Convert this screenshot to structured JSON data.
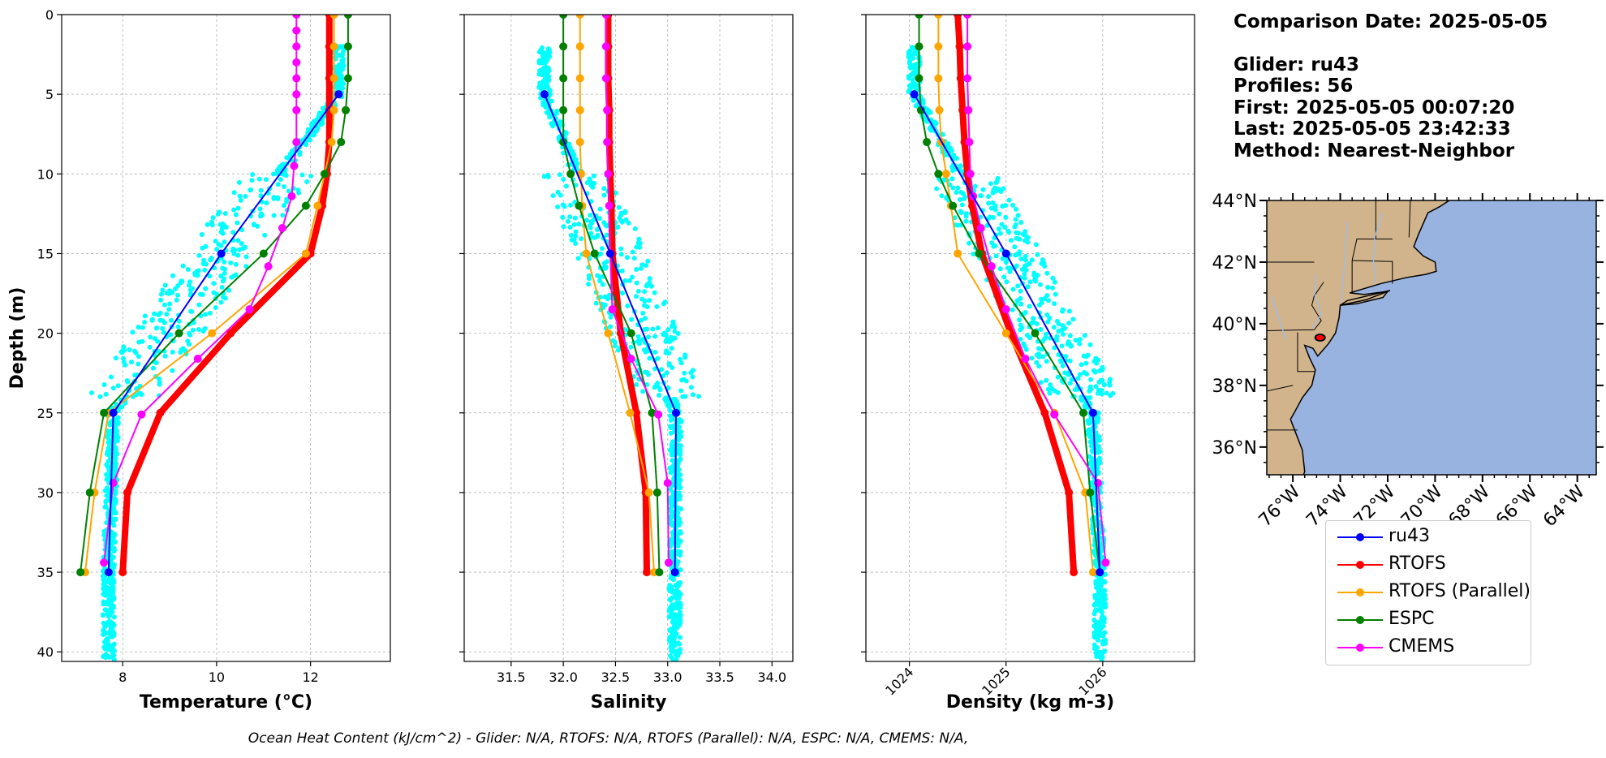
{
  "figure": {
    "info_lines": [
      "Comparison Date: 2025-05-05",
      "",
      "Glider: ru43",
      "Profiles: 56",
      "First: 2025-05-05 00:07:20",
      "Last: 2025-05-05 23:42:33",
      "Method: Nearest-Neighbor"
    ],
    "footnote": "Ocean Heat Content (kJ/cm^2) - Glider: N/A,  RTOFS: N/A,  RTOFS (Parallel): N/A,  ESPC: N/A,  CMEMS: N/A,"
  },
  "legend": {
    "location": "below-map",
    "items": [
      {
        "label": "ru43",
        "color": "#0000ff",
        "lw": 2
      },
      {
        "label": "RTOFS",
        "color": "#ff0000",
        "lw": 2
      },
      {
        "label": "RTOFS (Parallel)",
        "color": "#ffa500",
        "lw": 2
      },
      {
        "label": "ESPC",
        "color": "#008000",
        "lw": 2
      },
      {
        "label": "CMEMS",
        "color": "#ff00ff",
        "lw": 2
      }
    ]
  },
  "colors": {
    "glider_scatter": "#00ffff",
    "land": "#d2b48c",
    "ocean": "#99b3e0",
    "rivers": "#9fbde6",
    "grid": "#b0b0b0"
  },
  "chart_data": [
    {
      "type": "line",
      "id": "temperature",
      "xlabel": "Temperature (°C)",
      "ylabel": "Depth (m)",
      "xlim": [
        6.7,
        13.7
      ],
      "ylim": [
        40.6,
        0
      ],
      "xticks": [
        8,
        10,
        12
      ],
      "yticks": [
        0,
        5,
        10,
        15,
        20,
        25,
        30,
        35,
        40
      ],
      "grid": true,
      "scatter_note": "cyan dots: individual glider observations",
      "series": [
        {
          "name": "ru43",
          "color": "#0000ff",
          "lw": 2,
          "ms": 10,
          "depth": [
            5,
            15,
            25,
            35
          ],
          "values": [
            12.6,
            10.1,
            7.8,
            7.7
          ]
        },
        {
          "name": "RTOFS",
          "color": "#ff0000",
          "lw": 8,
          "ms": 10,
          "depth": [
            0,
            2,
            4,
            6,
            8,
            10,
            12,
            15,
            20,
            25,
            30,
            35
          ],
          "values": [
            12.4,
            12.4,
            12.4,
            12.4,
            12.4,
            12.35,
            12.25,
            12.0,
            10.3,
            8.8,
            8.1,
            8.0
          ]
        },
        {
          "name": "RTOFS (Parallel)",
          "color": "#ffa500",
          "lw": 2,
          "ms": 10,
          "depth": [
            0,
            2,
            4,
            6,
            8,
            10,
            12,
            15,
            20,
            25,
            30,
            35
          ],
          "values": [
            12.5,
            12.5,
            12.5,
            12.5,
            12.45,
            12.3,
            12.15,
            11.9,
            9.9,
            7.7,
            7.4,
            7.2
          ]
        },
        {
          "name": "ESPC",
          "color": "#008000",
          "lw": 2,
          "ms": 10,
          "depth": [
            0,
            2,
            4,
            6,
            8,
            10,
            12,
            15,
            20,
            25,
            30,
            35
          ],
          "values": [
            12.8,
            12.8,
            12.8,
            12.75,
            12.65,
            12.3,
            11.9,
            11.0,
            9.2,
            7.6,
            7.3,
            7.1
          ]
        },
        {
          "name": "CMEMS",
          "color": "#ff00ff",
          "lw": 2,
          "ms": 10,
          "depth": [
            0,
            1,
            2,
            3,
            4,
            5,
            6,
            8,
            9.5,
            11.4,
            13.4,
            15.8,
            18.5,
            21.6,
            25.1,
            29.4,
            34.4
          ],
          "values": [
            11.7,
            11.7,
            11.7,
            11.7,
            11.7,
            11.7,
            11.7,
            11.7,
            11.65,
            11.6,
            11.4,
            11.1,
            10.7,
            9.6,
            8.4,
            7.8,
            7.6
          ]
        }
      ]
    },
    {
      "type": "line",
      "id": "salinity",
      "xlabel": "Salinity",
      "ylabel": "",
      "xlim": [
        31.05,
        34.2
      ],
      "ylim": [
        40.6,
        0
      ],
      "xticks": [
        31.5,
        32.0,
        32.5,
        33.0,
        33.5,
        34.0
      ],
      "xtick_labels": [
        "31.5",
        "32.0",
        "32.5",
        "33.0",
        "33.5",
        "34.0"
      ],
      "yticks": [
        0,
        5,
        10,
        15,
        20,
        25,
        30,
        35,
        40
      ],
      "grid": true,
      "series": [
        {
          "name": "ru43",
          "color": "#0000ff",
          "lw": 2,
          "ms": 10,
          "depth": [
            5,
            15,
            25,
            35
          ],
          "values": [
            31.82,
            32.45,
            33.08,
            33.07
          ]
        },
        {
          "name": "RTOFS",
          "color": "#ff0000",
          "lw": 8,
          "ms": 10,
          "depth": [
            0,
            2,
            4,
            6,
            8,
            10,
            12,
            15,
            20,
            25,
            30,
            35
          ],
          "values": [
            32.43,
            32.43,
            32.43,
            32.44,
            32.44,
            32.45,
            32.46,
            32.47,
            32.55,
            32.7,
            32.79,
            32.8
          ]
        },
        {
          "name": "RTOFS (Parallel)",
          "color": "#ffa500",
          "lw": 2,
          "ms": 10,
          "depth": [
            0,
            2,
            4,
            6,
            8,
            10,
            12,
            15,
            20,
            25,
            30,
            35
          ],
          "values": [
            32.16,
            32.16,
            32.16,
            32.16,
            32.16,
            32.17,
            32.18,
            32.22,
            32.43,
            32.64,
            32.82,
            32.87
          ]
        },
        {
          "name": "ESPC",
          "color": "#008000",
          "lw": 2,
          "ms": 10,
          "depth": [
            0,
            2,
            4,
            6,
            8,
            10,
            12,
            15,
            20,
            25,
            30,
            35
          ],
          "values": [
            32.0,
            32.0,
            32.0,
            32.0,
            32.0,
            32.07,
            32.15,
            32.3,
            32.65,
            32.85,
            32.9,
            32.92
          ]
        },
        {
          "name": "CMEMS",
          "color": "#ff00ff",
          "lw": 2,
          "ms": 10,
          "depth": [
            0,
            2,
            4,
            6,
            8,
            10,
            12,
            15,
            18.5,
            21.6,
            25.1,
            29.4,
            34.4
          ],
          "values": [
            32.41,
            32.41,
            32.41,
            32.42,
            32.42,
            32.43,
            32.44,
            32.45,
            32.47,
            32.65,
            32.91,
            33.0,
            33.01
          ]
        }
      ]
    },
    {
      "type": "line",
      "id": "density",
      "xlabel": "Density (kg m-3)",
      "ylabel": "",
      "xlim": [
        1023.55,
        1026.95
      ],
      "ylim": [
        40.6,
        0
      ],
      "xticks": [
        1024,
        1025,
        1026
      ],
      "yticks": [
        0,
        5,
        10,
        15,
        20,
        25,
        30,
        35,
        40
      ],
      "grid": true,
      "series": [
        {
          "name": "ru43",
          "color": "#0000ff",
          "lw": 2,
          "ms": 10,
          "depth": [
            5,
            15,
            25,
            35
          ],
          "values": [
            1024.05,
            1025.0,
            1025.9,
            1025.97
          ]
        },
        {
          "name": "RTOFS",
          "color": "#ff0000",
          "lw": 8,
          "ms": 10,
          "depth": [
            0,
            2,
            4,
            6,
            8,
            10,
            12,
            15,
            20,
            25,
            30,
            35
          ],
          "values": [
            1024.5,
            1024.52,
            1024.53,
            1024.55,
            1024.57,
            1024.6,
            1024.65,
            1024.75,
            1025.05,
            1025.4,
            1025.65,
            1025.7
          ]
        },
        {
          "name": "RTOFS (Parallel)",
          "color": "#ffa500",
          "lw": 2,
          "ms": 10,
          "depth": [
            0,
            2,
            4,
            6,
            8,
            10,
            12,
            15,
            20,
            25,
            30,
            35
          ],
          "values": [
            1024.3,
            1024.3,
            1024.3,
            1024.31,
            1024.33,
            1024.38,
            1024.43,
            1024.5,
            1025.0,
            1025.5,
            1025.82,
            1025.9
          ]
        },
        {
          "name": "ESPC",
          "color": "#008000",
          "lw": 2,
          "ms": 10,
          "depth": [
            0,
            2,
            4,
            6,
            8,
            10,
            12,
            15,
            20,
            25,
            30,
            35
          ],
          "values": [
            1024.1,
            1024.1,
            1024.1,
            1024.12,
            1024.18,
            1024.3,
            1024.45,
            1024.72,
            1025.3,
            1025.8,
            1025.87,
            1025.97
          ]
        },
        {
          "name": "CMEMS",
          "color": "#ff00ff",
          "lw": 2,
          "ms": 10,
          "depth": [
            0,
            2,
            4,
            6,
            8,
            10,
            11.4,
            13.4,
            15.8,
            18.5,
            21.6,
            25.1,
            29.4,
            34.4
          ],
          "values": [
            1024.6,
            1024.6,
            1024.6,
            1024.61,
            1024.62,
            1024.63,
            1024.66,
            1024.74,
            1024.85,
            1025.0,
            1025.2,
            1025.5,
            1025.95,
            1026.03
          ]
        }
      ]
    },
    {
      "type": "map",
      "id": "location_map",
      "lon_range": [
        -77.1,
        -63.2
      ],
      "lat_range": [
        35.1,
        44.0
      ],
      "lon_ticks": [
        -76,
        -74,
        -72,
        -70,
        -68,
        -66,
        -64
      ],
      "lon_tick_labels": [
        "76°W",
        "74°W",
        "72°W",
        "70°W",
        "68°W",
        "66°W",
        "64°W"
      ],
      "lat_ticks": [
        36,
        38,
        40,
        42,
        44
      ],
      "lat_tick_labels": [
        "36°N",
        "38°N",
        "40°N",
        "42°N",
        "44°N"
      ],
      "glider_position": {
        "lon": -74.85,
        "lat": 39.55
      }
    }
  ]
}
